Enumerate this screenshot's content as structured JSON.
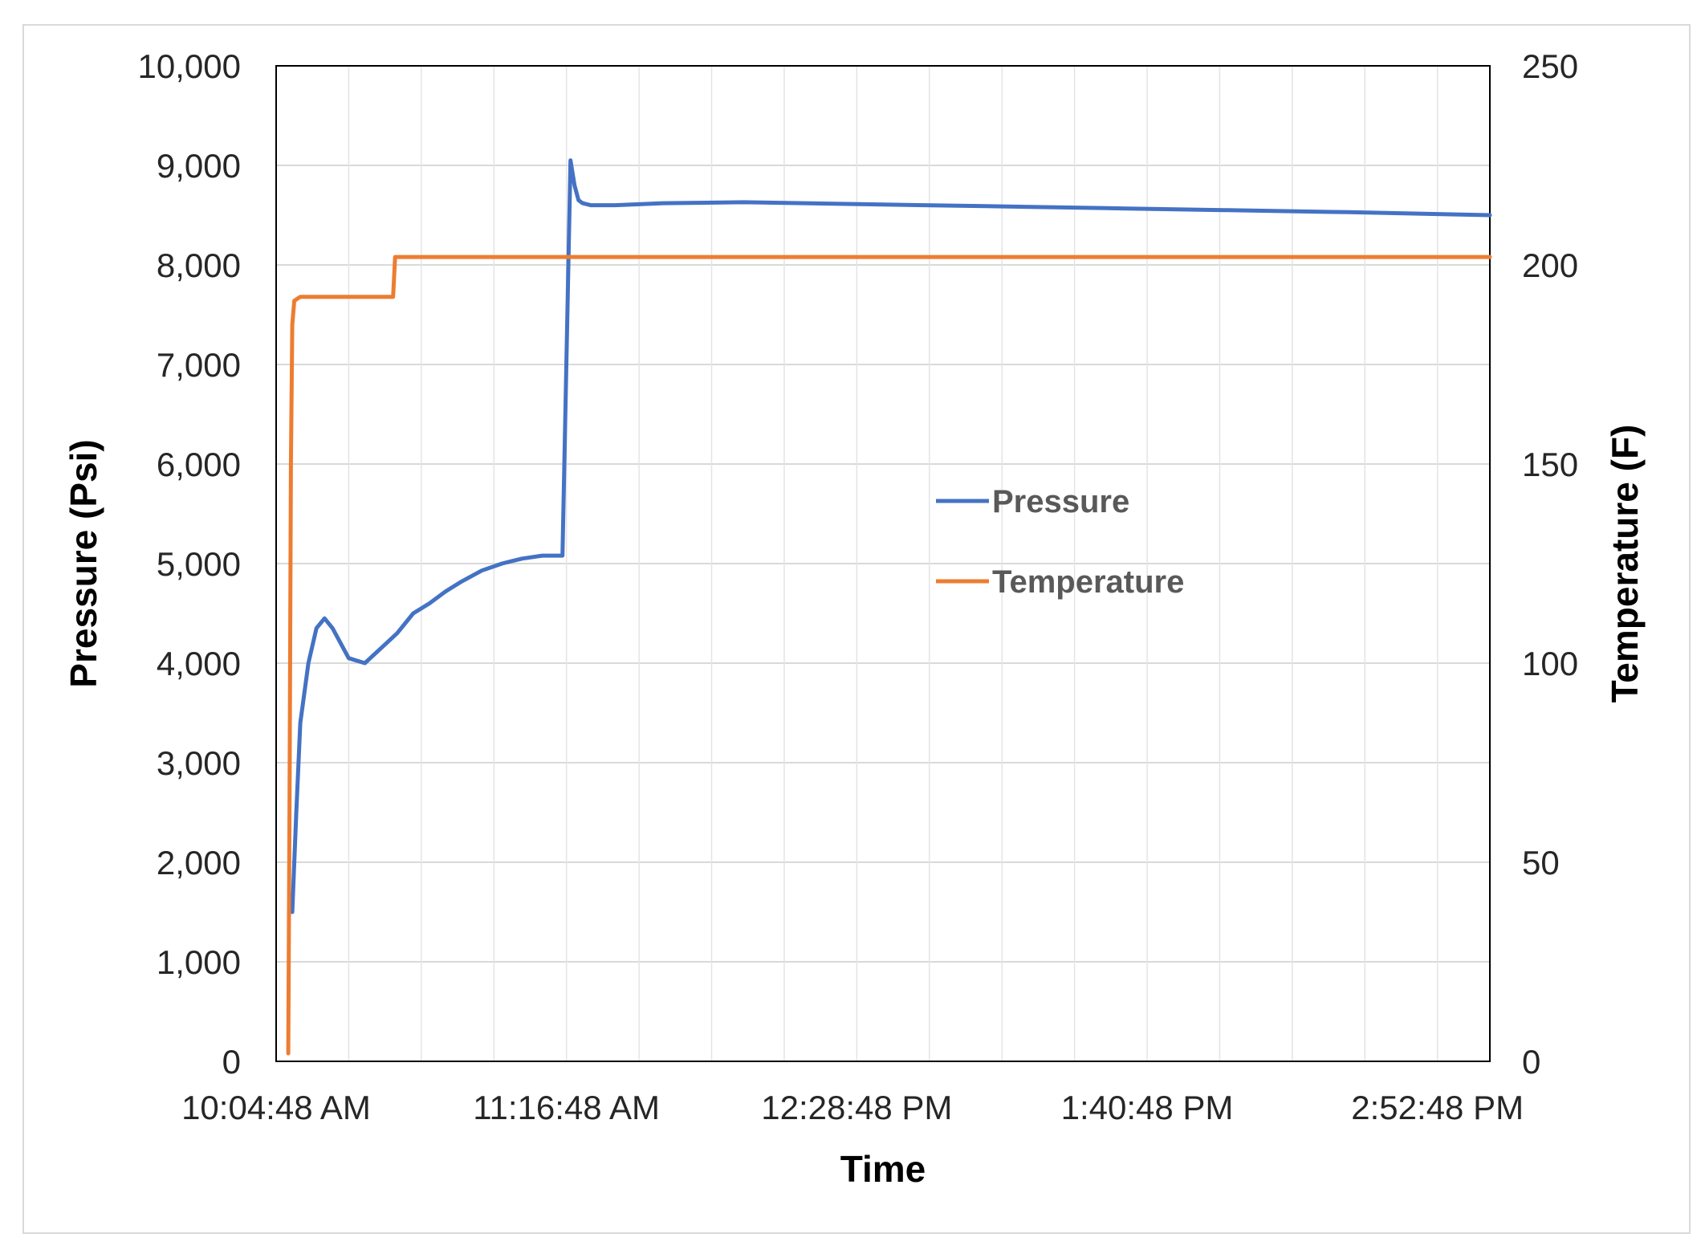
{
  "chart_data": {
    "type": "line",
    "title": "",
    "xlabel": "Time",
    "ylabel": "Pressure (Psi)",
    "y2label": "Temperature (F)",
    "x_tick_labels": [
      "10:04:48 AM",
      "11:16:48 AM",
      "12:28:48 PM",
      "1:40:48 PM",
      "2:52:48 PM"
    ],
    "y_tick_labels": [
      "0",
      "1,000",
      "2,000",
      "3,000",
      "4,000",
      "5,000",
      "6,000",
      "7,000",
      "8,000",
      "9,000",
      "10,000"
    ],
    "y2_tick_labels": [
      "0",
      "50",
      "100",
      "150",
      "200",
      "250"
    ],
    "ylim": [
      0,
      10000
    ],
    "y2lim": [
      0,
      250
    ],
    "xlim": [
      "10:04:48",
      "15:05:48"
    ],
    "grid": true,
    "legend_position": "center",
    "series": [
      {
        "name": "Pressure",
        "axis": "left",
        "color": "#4472C4",
        "x": [
          "10:08:48",
          "10:09:48",
          "10:10:48",
          "10:12:48",
          "10:14:48",
          "10:16:48",
          "10:18:48",
          "10:22:48",
          "10:26:48",
          "10:30:48",
          "10:34:48",
          "10:38:48",
          "10:42:48",
          "10:46:48",
          "10:50:48",
          "10:55:48",
          "11:00:48",
          "11:05:48",
          "11:10:48",
          "11:15:48",
          "11:17:48",
          "11:18:48",
          "11:19:48",
          "11:20:48",
          "11:22:48",
          "11:24:48",
          "11:28:48",
          "11:40:48",
          "12:00:48",
          "12:30:48",
          "13:00:48",
          "13:30:48",
          "14:00:48",
          "14:30:48",
          "15:05:48"
        ],
        "values": [
          1500,
          2500,
          3400,
          4000,
          4350,
          4450,
          4350,
          4050,
          4000,
          4150,
          4300,
          4500,
          4600,
          4720,
          4820,
          4930,
          5000,
          5050,
          5080,
          5080,
          9050,
          8800,
          8650,
          8620,
          8600,
          8600,
          8600,
          8620,
          8630,
          8610,
          8590,
          8570,
          8550,
          8530,
          8500
        ]
      },
      {
        "name": "Temperature",
        "axis": "right",
        "color": "#ED7D31",
        "x": [
          "10:07:48",
          "10:08:08",
          "10:08:28",
          "10:08:48",
          "10:09:18",
          "10:10:48",
          "10:14:48",
          "10:20:48",
          "10:26:48",
          "10:30:48",
          "10:33:48",
          "10:34:18",
          "10:36:48",
          "11:00:48",
          "11:30:48",
          "12:00:48",
          "12:30:48",
          "13:00:48",
          "13:30:48",
          "14:00:48",
          "14:30:48",
          "15:05:48"
        ],
        "values": [
          2,
          65,
          150,
          185,
          191,
          192,
          192,
          192,
          192,
          192,
          192,
          202,
          202,
          202,
          202,
          202,
          202,
          202,
          202,
          202,
          202,
          202
        ]
      }
    ]
  }
}
